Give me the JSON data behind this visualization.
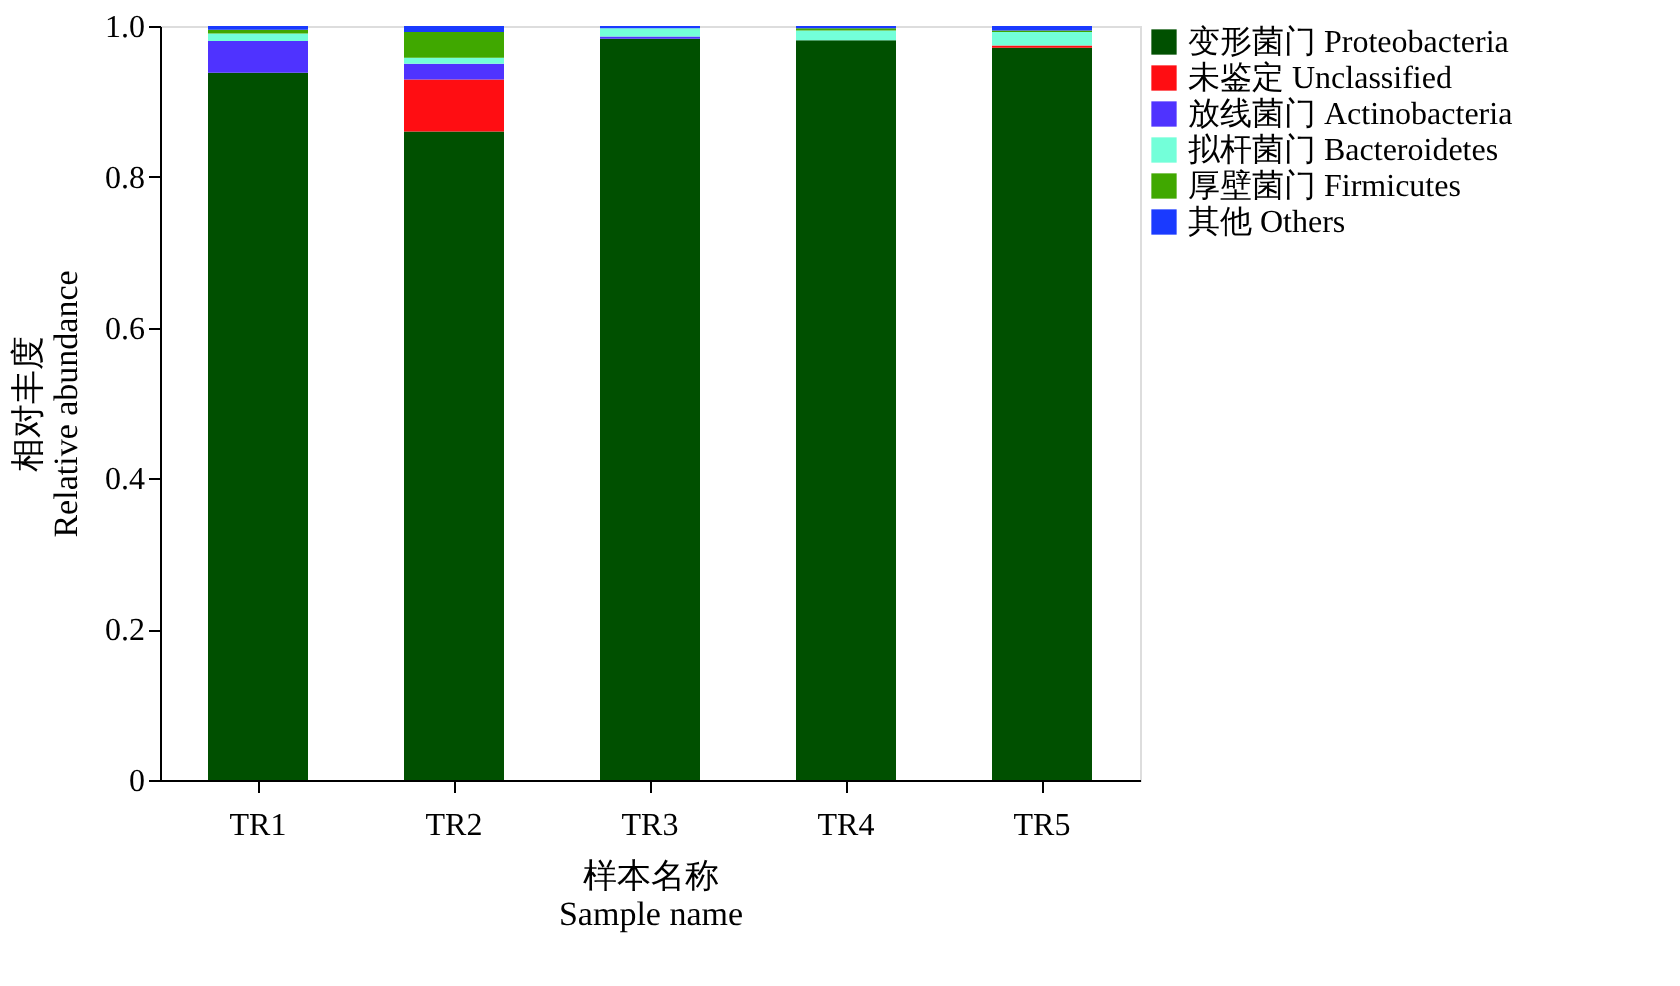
{
  "chart_data": {
    "type": "bar",
    "stacked": true,
    "xlabel": [
      "样本名称",
      "Sample name"
    ],
    "ylabel": [
      "相对丰度",
      "Relative abundance"
    ],
    "categories": [
      "TR1",
      "TR2",
      "TR3",
      "TR4",
      "TR5"
    ],
    "series": [
      {
        "name": "变形菌门 Proteobacteria",
        "color": "#005000",
        "values": [
          0.938,
          0.86,
          0.983,
          0.981,
          0.971
        ]
      },
      {
        "name": "未鉴定 Unclassified",
        "color": "#ff0d12",
        "values": [
          0,
          0.069,
          0,
          0,
          0.003
        ]
      },
      {
        "name": "放线菌门 Actinobacteria",
        "color": "#4f33ff",
        "values": [
          0.042,
          0.021,
          0.003,
          0,
          0
        ]
      },
      {
        "name": "拟杆菌门 Bacteroidetes",
        "color": "#73ffd9",
        "values": [
          0.01,
          0.008,
          0.011,
          0.013,
          0.018
        ]
      },
      {
        "name": "厚壁菌门 Firmicutes",
        "color": "#40a800",
        "values": [
          0.005,
          0.034,
          0,
          0.003,
          0.002
        ]
      },
      {
        "name": "其他 Others",
        "color": "#1a3aff",
        "values": [
          0.005,
          0.008,
          0.003,
          0.003,
          0.006
        ]
      }
    ],
    "ylim": [
      0,
      1.0
    ],
    "yticks": [
      0,
      0.2,
      0.4,
      0.6,
      0.8,
      {
        "value": 1.0,
        "label": "1.0"
      }
    ],
    "grid": false,
    "legend": "top right"
  }
}
